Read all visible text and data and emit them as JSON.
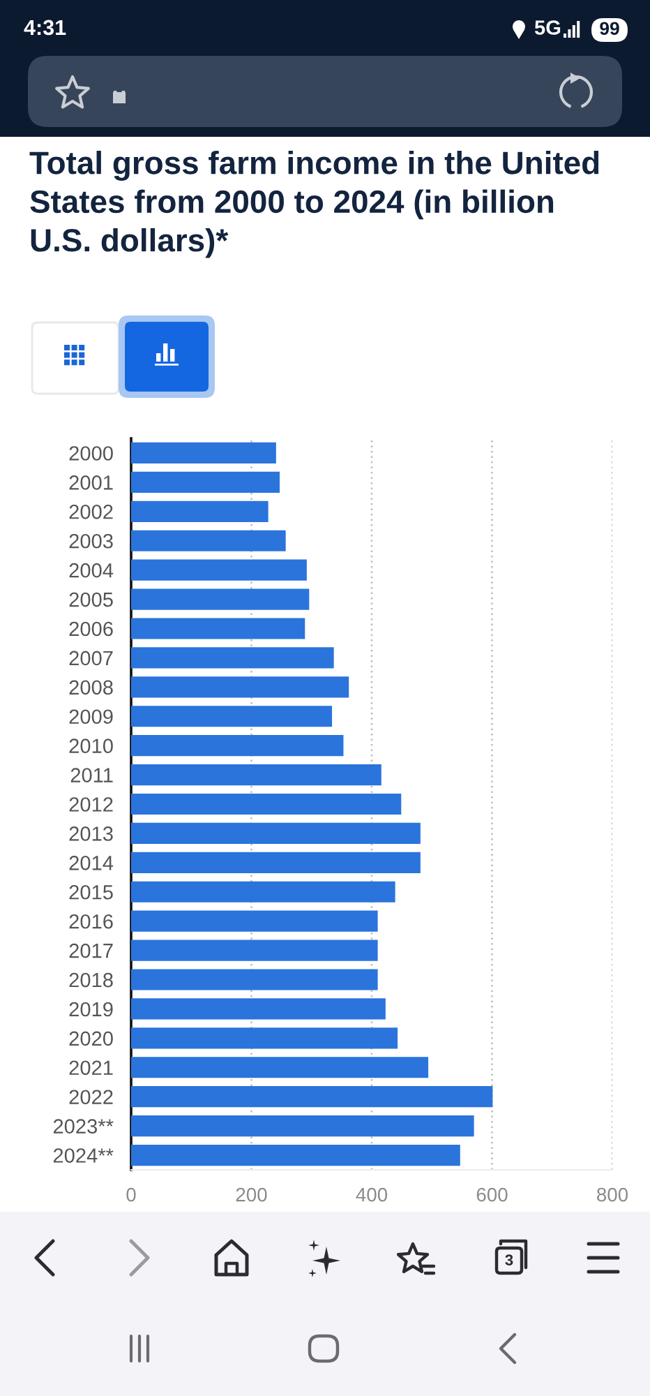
{
  "chart_data": {
    "type": "bar",
    "orientation": "horizontal",
    "title": "Total gross farm income in the United States from 2000 to 2024 (in billion U.S. dollars)*",
    "categories": [
      "2000",
      "2001",
      "2002",
      "2003",
      "2004",
      "2005",
      "2006",
      "2007",
      "2008",
      "2009",
      "2010",
      "2011",
      "2012",
      "2013",
      "2014",
      "2015",
      "2016",
      "2017",
      "2018",
      "2019",
      "2020",
      "2021",
      "2022",
      "2023**",
      "2024**"
    ],
    "values": [
      241,
      247,
      228,
      257,
      292,
      296,
      289,
      337,
      362,
      334,
      353,
      416,
      449,
      481,
      481,
      439,
      410,
      410,
      410,
      423,
      443,
      494,
      601,
      570,
      547
    ],
    "color": "#2a74dc",
    "xlim": [
      0,
      800
    ],
    "xticks": [
      0,
      200,
      400,
      600,
      800
    ],
    "grid": "x",
    "annotations": [
      "4:31",
      "5G",
      "99",
      "3"
    ]
  }
}
